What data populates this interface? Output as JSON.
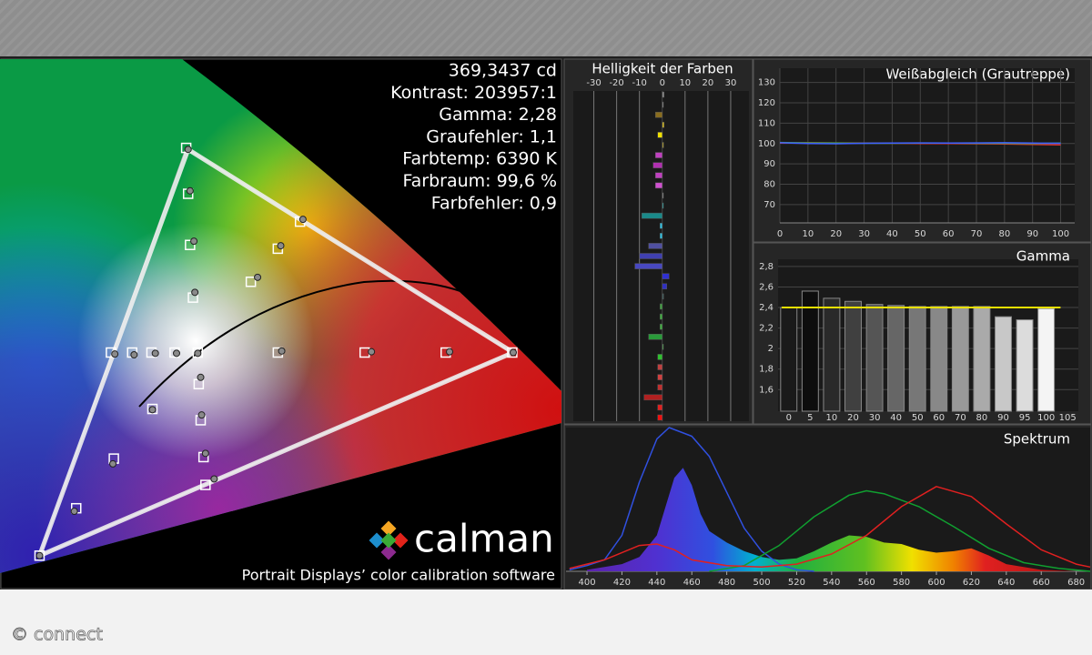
{
  "stats": [
    "369,3437 cd",
    "Kontrast: 203957:1",
    "Gamma: 2,28",
    "Graufehler: 1,1",
    "Farbtemp: 6390 K",
    "Farbraum: 99,6 %",
    "Farbfehler: 0,9"
  ],
  "logo": "calman",
  "caption": "Portrait Displays’ color calibration software",
  "watermark": "© connect",
  "chart_data": [
    {
      "type": "scatter",
      "xlim": [
        0.109,
        0.691
      ],
      "ylim": [
        0.015,
        0.72
      ],
      "series": [
        {
          "color": "#ffffff",
          "marker": "square",
          "x": [
            0.302,
            0.304,
            0.306,
            0.309,
            0.314,
            0.42,
            0.397,
            0.369,
            0.64,
            0.571,
            0.487,
            0.397,
            0.15,
            0.188,
            0.227,
            0.267,
            0.322,
            0.32,
            0.317,
            0.315,
            0.224,
            0.246,
            0.266,
            0.29
          ],
          "values": [
            0.602,
            0.541,
            0.473,
            0.403,
            0.33,
            0.504,
            0.468,
            0.424,
            0.33,
            0.33,
            0.33,
            0.33,
            0.06,
            0.123,
            0.189,
            0.255,
            0.154,
            0.191,
            0.24,
            0.288,
            0.33,
            0.33,
            0.33,
            0.33
          ]
        },
        {
          "color": "#8a8a8a",
          "marker": "circle",
          "x": [
            0.304,
            0.306,
            0.31,
            0.311,
            0.314,
            0.423,
            0.4,
            0.376,
            0.641,
            0.575,
            0.494,
            0.401,
            0.15,
            0.186,
            0.226,
            0.267,
            0.331,
            0.322,
            0.318,
            0.317,
            0.228,
            0.248,
            0.27,
            0.292
          ],
          "values": [
            0.6,
            0.545,
            0.478,
            0.41,
            0.329,
            0.507,
            0.472,
            0.43,
            0.33,
            0.331,
            0.331,
            0.332,
            0.06,
            0.119,
            0.182,
            0.254,
            0.162,
            0.196,
            0.247,
            0.297,
            0.328,
            0.327,
            0.329,
            0.329
          ]
        }
      ]
    },
    {
      "type": "hbar",
      "title": "Helligkeit der Farben",
      "xlim": [
        -39,
        38
      ],
      "xticks": [
        -30,
        -20,
        -10,
        0,
        10,
        20,
        30
      ],
      "grid": true,
      "values": [
        0.8,
        0.5,
        -3,
        0.8,
        -2,
        0.6,
        -3,
        -4,
        -3,
        -3,
        0.5,
        0.5,
        -9,
        -1,
        -1,
        -6,
        -10,
        -12,
        3,
        2,
        0.6,
        -1,
        -1,
        -1,
        -6,
        0.5,
        -2,
        -2,
        -2,
        -2,
        -8,
        -2,
        -2
      ],
      "colors": [
        "#888888",
        "#888888",
        "#8a6d1e",
        "#c9b020",
        "#f0e000",
        "#a09030",
        "#c040c0",
        "#b030b0",
        "#c040c0",
        "#d050d0",
        "#888888",
        "#30a0a0",
        "#1a8a8a",
        "#30c0e0",
        "#30c0e0",
        "#5050a0",
        "#4040b0",
        "#4848c0",
        "#3030d0",
        "#3030c0",
        "#406060",
        "#40a040",
        "#40b040",
        "#40b040",
        "#2a9a3a",
        "#50a050",
        "#30c030",
        "#c04040",
        "#d04040",
        "#c03030",
        "#b02020",
        "#e02020",
        "#f01010"
      ]
    },
    {
      "type": "line",
      "title": "Weißabgleich (Grautreppe)",
      "xlim": [
        0,
        105
      ],
      "ylim": [
        61,
        137
      ],
      "xticks": [
        0,
        10,
        20,
        30,
        40,
        50,
        60,
        70,
        80,
        90,
        100
      ],
      "yticks": [
        70,
        80,
        90,
        100,
        110,
        120,
        130
      ],
      "grid": true,
      "series": [
        {
          "color": "#e03030",
          "x": [
            0,
            10,
            20,
            30,
            40,
            50,
            60,
            70,
            80,
            90,
            100
          ],
          "values": [
            100.2,
            100.4,
            100.3,
            100.2,
            100.1,
            100.0,
            100.0,
            99.9,
            99.8,
            99.6,
            99.3
          ]
        },
        {
          "color": "#30b040",
          "x": [
            0,
            10,
            20,
            30,
            40,
            50,
            60,
            70,
            80,
            90,
            100
          ],
          "values": [
            100.5,
            100.3,
            100.2,
            100.1,
            100.1,
            100.2,
            100.2,
            100.1,
            100.1,
            100.0,
            100.2
          ]
        },
        {
          "color": "#4060ff",
          "x": [
            0,
            10,
            20,
            30,
            40,
            50,
            60,
            70,
            80,
            90,
            100
          ],
          "values": [
            100.4,
            100.0,
            99.9,
            100.1,
            100.2,
            100.3,
            100.2,
            100.3,
            100.4,
            100.2,
            100.1
          ]
        }
      ]
    },
    {
      "type": "bar",
      "title": "Gamma",
      "categories": [
        "0",
        "5",
        "10",
        "20",
        "30",
        "40",
        "50",
        "60",
        "70",
        "80",
        "90",
        "95",
        "100",
        "105"
      ],
      "values": [
        2.4,
        2.56,
        2.49,
        2.46,
        2.43,
        2.42,
        2.41,
        2.41,
        2.41,
        2.41,
        2.31,
        2.28,
        2.39,
        null
      ],
      "colors": [
        "#1a1a1a",
        "#0d0d0d",
        "#2a2a2a",
        "#404040",
        "#555555",
        "#666666",
        "#777777",
        "#888888",
        "#999999",
        "#aaaaaa",
        "#c8c8c8",
        "#dcdcdc",
        "#f4f4f4",
        null
      ],
      "ylim": [
        1.39,
        2.87
      ],
      "yticks": [
        {
          "value": 1.6,
          "label": "1,6"
        },
        {
          "value": 1.8,
          "label": "1,8"
        },
        2,
        {
          "value": 2.2,
          "label": "2,2"
        },
        {
          "value": 2.4,
          "label": "2,4"
        },
        {
          "value": 2.6,
          "label": "2,6"
        },
        {
          "value": 2.8,
          "label": "2,8"
        }
      ],
      "grid": true,
      "target": 2.4,
      "target_color": "#e8e000"
    },
    {
      "type": "line",
      "title": "Spektrum",
      "xlim": [
        388,
        688
      ],
      "ylim": [
        0,
        100
      ],
      "xticks": [
        400,
        420,
        440,
        460,
        480,
        500,
        520,
        540,
        560,
        580,
        600,
        620,
        640,
        660,
        680
      ],
      "grid": false,
      "series": [
        {
          "fill": true,
          "x": [
            400,
            420,
            430,
            440,
            445,
            450,
            455,
            460,
            465,
            470,
            480,
            490,
            500,
            510,
            520,
            530,
            540,
            550,
            560,
            570,
            580,
            590,
            600,
            610,
            620,
            630,
            640,
            660,
            680
          ],
          "values": [
            1,
            5,
            10,
            25,
            45,
            65,
            72,
            60,
            40,
            28,
            20,
            14,
            10,
            8,
            9,
            14,
            20,
            25,
            24,
            20,
            19,
            15,
            13,
            14,
            16,
            11,
            5,
            1,
            0
          ]
        },
        {
          "color": "#3050e0",
          "x": [
            390,
            400,
            410,
            420,
            430,
            440,
            447,
            460,
            470,
            480,
            490,
            500,
            510,
            520,
            530
          ],
          "values": [
            1,
            4,
            8,
            25,
            62,
            92,
            100,
            94,
            80,
            55,
            30,
            14,
            5,
            1,
            0
          ]
        },
        {
          "color": "#10a030",
          "x": [
            470,
            490,
            510,
            530,
            550,
            560,
            570,
            590,
            610,
            630,
            650,
            670,
            688
          ],
          "values": [
            0,
            4,
            18,
            38,
            53,
            56,
            54,
            45,
            31,
            16,
            6,
            2,
            0
          ]
        },
        {
          "color": "#e02020",
          "x": [
            390,
            410,
            430,
            440,
            450,
            460,
            480,
            500,
            520,
            540,
            560,
            580,
            600,
            620,
            640,
            660,
            680,
            688
          ],
          "values": [
            2,
            8,
            18,
            19,
            15,
            8,
            4,
            3,
            5,
            12,
            25,
            45,
            59,
            52,
            33,
            15,
            5,
            3
          ]
        }
      ]
    }
  ]
}
